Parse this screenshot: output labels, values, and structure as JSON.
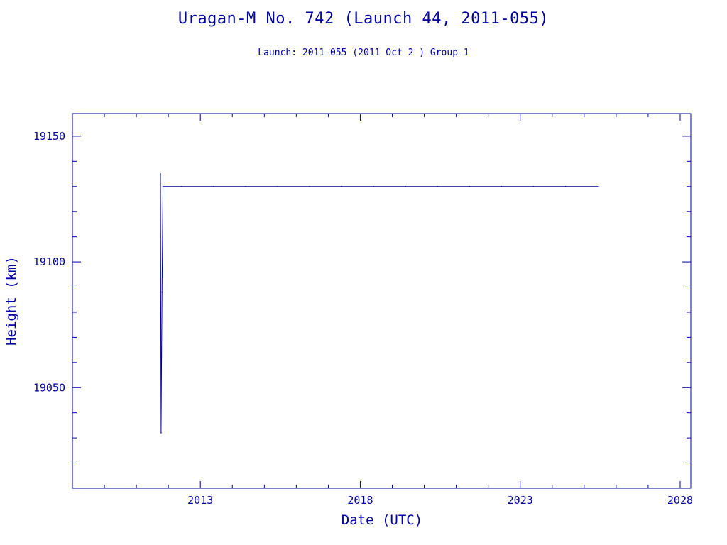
{
  "chart_data": {
    "type": "line",
    "title": "Uragan-M No. 742 (Launch 44, 2011-055)",
    "subtitle": "Launch: 2011-055  (2011 Oct  2 )  Group 1",
    "xlabel": "Date (UTC)",
    "ylabel": "Height (km)",
    "x_type": "date",
    "xlim": [
      "2009-01-01",
      "2028-05-01"
    ],
    "ylim": [
      19010,
      19159
    ],
    "x_ticks": [
      "2013",
      "2018",
      "2023",
      "2028"
    ],
    "y_ticks": [
      19050,
      19100,
      19150
    ],
    "grid": false,
    "line_color": "#0000a0",
    "series": [
      {
        "values": [
          {
            "x": "2011-10-02",
            "y": 19135
          },
          {
            "x": "2011-10-09",
            "y": 19032
          },
          {
            "x": "2011-10-20",
            "y": 19088
          },
          {
            "x": "2011-11-01",
            "y": 19130
          },
          {
            "x": "2012-06-01",
            "y": 19130
          },
          {
            "x": "2013-06-01",
            "y": 19130
          },
          {
            "x": "2014-06-01",
            "y": 19130
          },
          {
            "x": "2015-06-01",
            "y": 19130
          },
          {
            "x": "2016-06-01",
            "y": 19130
          },
          {
            "x": "2017-06-01",
            "y": 19130
          },
          {
            "x": "2018-06-01",
            "y": 19130
          },
          {
            "x": "2019-06-01",
            "y": 19130
          },
          {
            "x": "2020-06-01",
            "y": 19130
          },
          {
            "x": "2021-06-01",
            "y": 19130
          },
          {
            "x": "2022-06-01",
            "y": 19130
          },
          {
            "x": "2023-06-01",
            "y": 19130
          },
          {
            "x": "2024-06-01",
            "y": 19130
          },
          {
            "x": "2025-06-10",
            "y": 19130
          }
        ]
      }
    ]
  }
}
